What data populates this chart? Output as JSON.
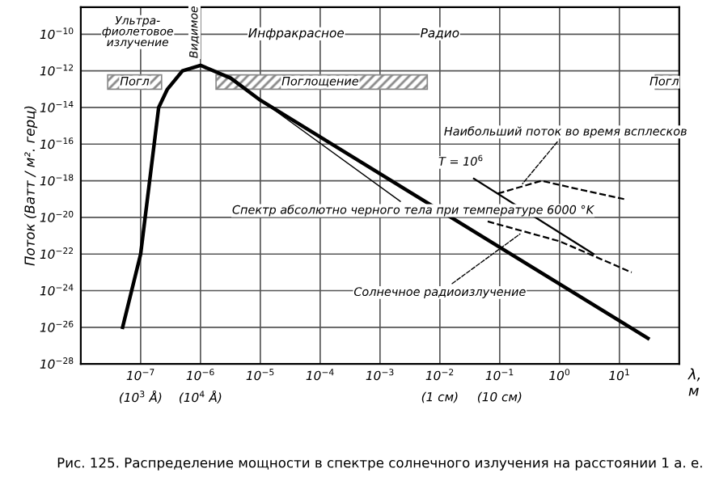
{
  "chart_data": {
    "type": "line",
    "xlabel": "λ, м",
    "ylabel": "Поток (Ватт / м². герц)",
    "log": "xy",
    "xlim": [
      1e-08,
      100
    ],
    "ylim": [
      1e-28,
      3e-09
    ],
    "xticks": [
      {
        "value": 1e-07,
        "label": "10$^{−7}$"
      },
      {
        "value": 1e-06,
        "label": "10$^{−6}$"
      },
      {
        "value": 1e-05,
        "label": "10$^{−5}$"
      },
      {
        "value": 0.0001,
        "label": "10$^{−4}$"
      },
      {
        "value": 0.001,
        "label": "10$^{−3}$"
      },
      {
        "value": 0.01,
        "label": "10$^{−2}$"
      },
      {
        "value": 0.1,
        "label": "10$^{−1}$"
      },
      {
        "value": 1,
        "label": "10$^{0}$"
      },
      {
        "value": 10,
        "label": "10$^{1}$"
      }
    ],
    "yticks": [
      {
        "value": 1e-10,
        "label": "10$^{−10}$"
      },
      {
        "value": 1e-12,
        "label": "10$^{−12}$"
      },
      {
        "value": 1e-14,
        "label": "10$^{−14}$"
      },
      {
        "value": 1e-16,
        "label": "10$^{−16}$"
      },
      {
        "value": 1e-18,
        "label": "10$^{−18}$"
      },
      {
        "value": 1e-20,
        "label": "10$^{−20}$"
      },
      {
        "value": 1e-22,
        "label": "10$^{−22}$"
      },
      {
        "value": 1e-24,
        "label": "10$^{−24}$"
      },
      {
        "value": 1e-26,
        "label": "10$^{−26}$"
      },
      {
        "value": 1e-28,
        "label": "10$^{−28}$"
      }
    ],
    "grid": true,
    "series": [
      {
        "name": "Спектр абсолютно черного тела при температуре 6000 °K",
        "color": "#000000",
        "line_style": "solid",
        "x": [
          5e-08,
          1e-07,
          2e-07,
          2.8e-07,
          5e-07,
          1e-06,
          3.2e-06,
          1e-05,
          30
        ],
        "values": [
          1e-26,
          1e-22,
          1e-14,
          1e-13,
          1e-12,
          2e-12,
          4e-13,
          2.5e-14,
          2.5e-27
        ]
      },
      {
        "name": "T = 10$^{6}$",
        "color": "#000000",
        "line_style": "solid",
        "x": [
          0.037,
          3.7
        ],
        "values": [
          1.3e-18,
          1e-22
        ]
      },
      {
        "name": "Наибольший поток во время всплесков",
        "color": "#000000",
        "line_style": "dashed",
        "x": [
          0.093,
          0.5,
          1.7,
          12
        ],
        "values": [
          2e-19,
          1e-18,
          4e-19,
          1e-19
        ]
      },
      {
        "name": "Солнечное радиоизлучение",
        "color": "#000000",
        "line_style": "dashed",
        "x": [
          0.063,
          1,
          16
        ],
        "values": [
          6e-21,
          5e-22,
          1e-23
        ]
      }
    ],
    "annotations": [
      "Ультра-\nфиолетовое\nизлучение",
      "Видимое",
      "Инфракрасное",
      "Радио",
      "Рис. 125. Распределение мощности в спектре солнечного излучения на расстоянии 1 а. е.",
      "Погл",
      "Поглощение",
      "Погл",
      "(10$^{3}$ Å)",
      "(10$^{4}$ Å)",
      "(1 см)",
      "(10 см)"
    ]
  }
}
